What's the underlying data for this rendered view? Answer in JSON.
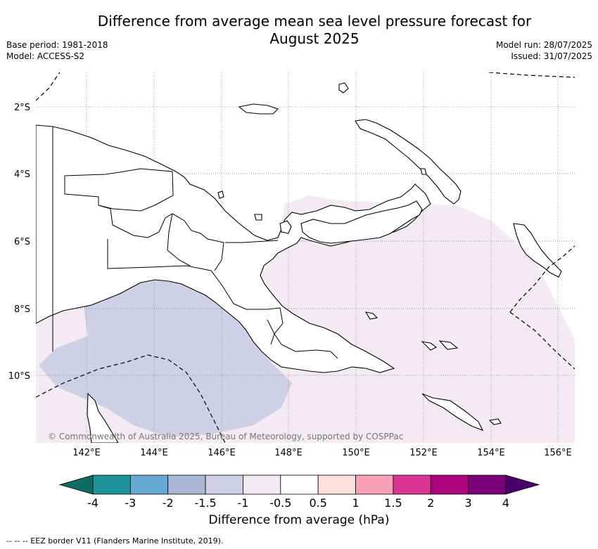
{
  "title_line1": "Difference from average mean sea level pressure forecast for",
  "title_line2": "August 2025",
  "base_period": "Base period: 1981-2018",
  "model": "Model: ACCESS-S2",
  "model_run": "Model run: 28/07/2025",
  "issued": "Issued: 31/07/2025",
  "copyright": "© Commonwealth of Australia 2025, Bureau of Meteorology, supported by COSPPac",
  "colorbar_label": "Difference from average (hPa)",
  "eez_note": "--  --  -- EEZ border V11 (Flanders Marine Institute, 2019).",
  "lat_ticks": [
    "2°S",
    "4°S",
    "6°S",
    "8°S",
    "10°S"
  ],
  "lon_ticks": [
    "142°E",
    "144°E",
    "146°E",
    "148°E",
    "150°E",
    "152°E",
    "154°E",
    "156°E"
  ],
  "colorbar": {
    "ticks": [
      "-4",
      "-3",
      "-2",
      "-1.5",
      "-1",
      "-0.5",
      "0.5",
      "1",
      "1.5",
      "2",
      "3",
      "4"
    ],
    "colors": [
      "#0c6d62",
      "#1e9499",
      "#66a9d4",
      "#a9b8d5",
      "#cfd0e6",
      "#f3eaf4",
      "#ffffff",
      "#fde0de",
      "#f9a0b9",
      "#dd3497",
      "#ae017e",
      "#7a0177",
      "#49006a"
    ]
  },
  "shading": {
    "light_anomaly_color": "#f3eaf4",
    "moderate_anomaly_color": "#cfd0e6"
  }
}
